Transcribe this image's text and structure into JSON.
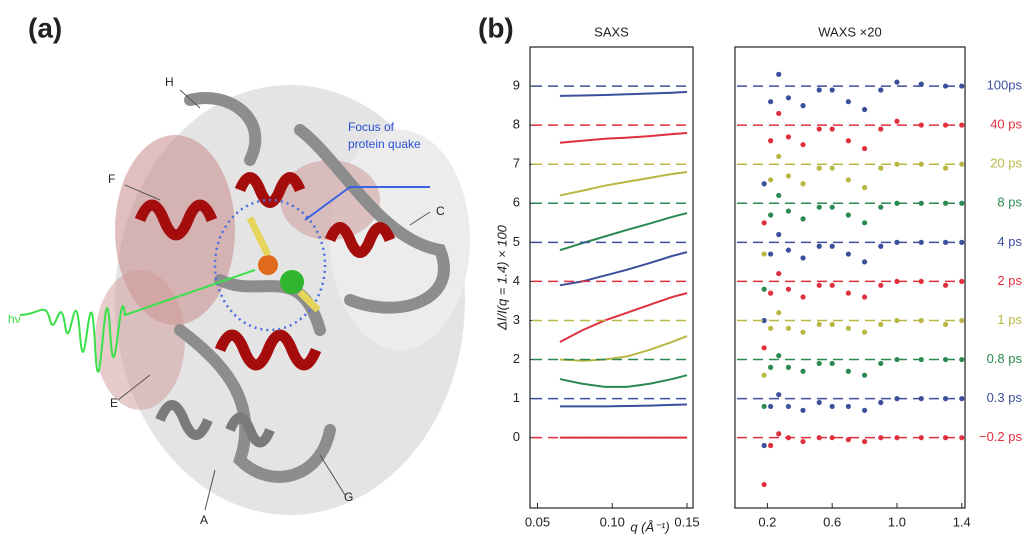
{
  "illustration": {
    "panel_label": "(a)",
    "labels": [
      "H",
      "F",
      "C",
      "E",
      "A",
      "G"
    ],
    "focus_label": [
      "Focus of",
      "protein quake"
    ],
    "photon_label": "hν"
  },
  "panel_b_label": "(b)",
  "chart_data": [
    {
      "type": "line",
      "title": "SAXS",
      "ylabel": "ΔI/I(q = 1.4) × 100",
      "xlabel": "q (Å⁻¹)",
      "x": [
        0.065,
        0.08,
        0.095,
        0.11,
        0.125,
        0.14,
        0.15
      ],
      "xlim": [
        0.045,
        0.154
      ],
      "xticks": [
        0.05,
        {
          "value": 0.1,
          "label": "0.10"
        },
        0.15
      ],
      "ylim": [
        -1.8,
        10
      ],
      "yticks": [
        0,
        1,
        2,
        3,
        4,
        5,
        6,
        7,
        8,
        9
      ],
      "series": [
        {
          "color": "#3b4f9c",
          "offset": 9,
          "values": [
            8.75,
            8.76,
            8.77,
            8.79,
            8.81,
            8.83,
            8.85
          ]
        },
        {
          "color": "#e0303e",
          "offset": 8,
          "values": [
            7.55,
            7.6,
            7.65,
            7.68,
            7.72,
            7.77,
            7.8
          ]
        },
        {
          "color": "#b9b743",
          "offset": 7,
          "values": [
            6.2,
            6.32,
            6.45,
            6.55,
            6.65,
            6.75,
            6.8
          ]
        },
        {
          "color": "#2a8a52",
          "offset": 6,
          "values": [
            4.8,
            4.98,
            5.15,
            5.32,
            5.48,
            5.65,
            5.75
          ]
        },
        {
          "color": "#3b4f9c",
          "offset": 5,
          "values": [
            3.9,
            4.0,
            4.15,
            4.3,
            4.47,
            4.65,
            4.75
          ]
        },
        {
          "color": "#e0303e",
          "offset": 4,
          "values": [
            2.45,
            2.75,
            3.0,
            3.2,
            3.4,
            3.6,
            3.7
          ]
        },
        {
          "color": "#b9b743",
          "offset": 3,
          "values": [
            2.0,
            1.97,
            2.0,
            2.08,
            2.25,
            2.45,
            2.6
          ]
        },
        {
          "color": "#2a8a52",
          "offset": 2,
          "values": [
            1.5,
            1.38,
            1.3,
            1.3,
            1.38,
            1.5,
            1.6
          ]
        },
        {
          "color": "#3b4f9c",
          "offset": 1,
          "values": [
            0.8,
            0.8,
            0.8,
            0.81,
            0.82,
            0.84,
            0.85
          ]
        },
        {
          "color": "#e0303e",
          "offset": 0,
          "values": [
            0,
            0,
            0,
            0,
            0,
            0,
            0
          ]
        }
      ]
    },
    {
      "type": "scatter",
      "title": "WAXS ×20",
      "x": [
        0.18,
        0.22,
        0.27,
        0.33,
        0.42,
        0.52,
        0.6,
        0.7,
        0.8,
        0.9,
        1.0,
        1.15,
        1.3,
        1.4
      ],
      "xlim": [
        0,
        1.42
      ],
      "xticks": [
        0.2,
        0.6,
        {
          "value": 1,
          "label": "1.0"
        },
        1.4
      ],
      "ylim": [
        -1.8,
        10
      ],
      "series": [
        {
          "name": "100ps",
          "color": "#3b4f9c",
          "offset": 9,
          "values": [
            6.5,
            8.6,
            9.3,
            8.7,
            8.5,
            8.9,
            8.9,
            8.6,
            8.4,
            8.9,
            9.1,
            9.05,
            9.0,
            9.0
          ]
        },
        {
          "name": "40 ps",
          "color": "#e0303e",
          "offset": 8,
          "values": [
            5.5,
            7.6,
            8.3,
            7.7,
            7.5,
            7.9,
            7.9,
            7.6,
            7.4,
            7.9,
            8.1,
            8.0,
            8.0,
            8.0
          ]
        },
        {
          "name": "20 ps",
          "color": "#b9b743",
          "offset": 7,
          "values": [
            4.7,
            6.6,
            7.2,
            6.7,
            6.5,
            6.9,
            6.9,
            6.6,
            6.4,
            6.9,
            7.0,
            7.0,
            6.9,
            7.0
          ]
        },
        {
          "name": "8 ps",
          "color": "#2a8a52",
          "offset": 6,
          "values": [
            3.8,
            5.7,
            6.2,
            5.8,
            5.6,
            5.9,
            5.9,
            5.7,
            5.5,
            5.9,
            6.0,
            6.0,
            6.0,
            6.0
          ]
        },
        {
          "name": "4 ps",
          "color": "#3b4f9c",
          "offset": 5,
          "values": [
            3.0,
            4.7,
            5.2,
            4.8,
            4.6,
            4.9,
            4.9,
            4.7,
            4.5,
            4.9,
            5.0,
            5.0,
            5.0,
            5.0
          ]
        },
        {
          "name": "2 ps",
          "color": "#e0303e",
          "offset": 4,
          "values": [
            2.3,
            3.7,
            4.2,
            3.8,
            3.6,
            3.9,
            3.9,
            3.7,
            3.6,
            3.9,
            4.0,
            4.0,
            3.9,
            4.0
          ]
        },
        {
          "name": "1 ps",
          "color": "#b9b743",
          "offset": 3,
          "values": [
            1.6,
            2.8,
            3.2,
            2.8,
            2.7,
            2.9,
            2.9,
            2.8,
            2.7,
            2.9,
            3.0,
            3.0,
            2.9,
            3.0
          ]
        },
        {
          "name": "0.8 ps",
          "color": "#2a8a52",
          "offset": 2,
          "values": [
            0.8,
            1.8,
            2.1,
            1.8,
            1.7,
            1.9,
            1.9,
            1.7,
            1.6,
            1.9,
            2.0,
            2.0,
            2.0,
            2.0
          ]
        },
        {
          "name": "0.3 ps",
          "color": "#3b4f9c",
          "offset": 1,
          "values": [
            -0.2,
            0.8,
            1.1,
            0.8,
            0.7,
            0.9,
            0.8,
            0.8,
            0.7,
            0.9,
            1.0,
            1.0,
            1.0,
            1.0
          ]
        },
        {
          "name": "−0.2 ps",
          "color": "#e0303e",
          "offset": 0,
          "values": [
            -1.2,
            -0.2,
            0.1,
            0.0,
            -0.1,
            0.0,
            0.0,
            -0.05,
            -0.1,
            0.0,
            0.0,
            0.0,
            0.0,
            0.0
          ]
        }
      ]
    }
  ]
}
